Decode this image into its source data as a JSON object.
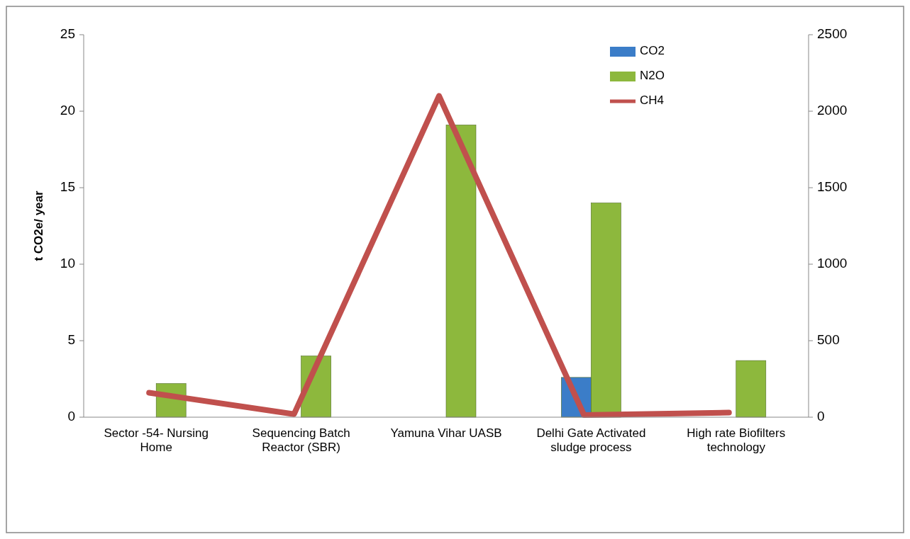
{
  "chart_data": {
    "type": "bar",
    "ylabel": "t CO2e/ year",
    "categories": [
      "Sector -54- Nursing Home",
      "Sequencing Batch Reactor (SBR)",
      "Yamuna Vihar UASB",
      "Delhi Gate Activated sludge process",
      "High rate Biofilters technology"
    ],
    "series": [
      {
        "name": "CO2",
        "color": "#3b7dc8",
        "values": [
          null,
          null,
          null,
          2.6,
          null
        ]
      },
      {
        "name": "N2O",
        "color": "#8db83d",
        "values": [
          2.2,
          4.0,
          19.1,
          14.0,
          3.7
        ]
      },
      {
        "name": "CH4",
        "type": "line",
        "axis": "y2",
        "color": "#c0504d",
        "values": [
          160,
          20,
          2100,
          14,
          30
        ]
      }
    ],
    "ylim": [
      0,
      25
    ],
    "yticks": [
      0,
      5,
      10,
      15,
      20,
      25
    ],
    "y2lim": [
      0,
      2500
    ],
    "y2ticks": [
      0,
      500,
      1000,
      1500,
      2000,
      2500
    ],
    "legend": "top right",
    "grid": false
  }
}
